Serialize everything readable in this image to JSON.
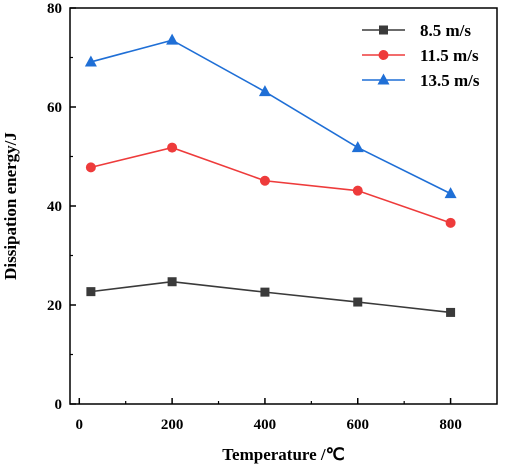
{
  "chart_data": {
    "type": "line",
    "xlabel": "Temperature /℃",
    "ylabel": "Dissipation energy/J",
    "xlim": [
      -20,
      900
    ],
    "ylim": [
      0,
      80
    ],
    "xticks": [
      0,
      200,
      400,
      600,
      800
    ],
    "yticks": [
      0,
      20,
      40,
      60,
      80
    ],
    "x": [
      25,
      200,
      400,
      600,
      800
    ],
    "legend_position": "top-right",
    "grid": false,
    "series": [
      {
        "name": "8.5 m/s",
        "values": [
          22.7,
          24.7,
          22.6,
          20.6,
          18.5
        ],
        "color": "#3a3a3a",
        "marker": "square"
      },
      {
        "name": "11.5 m/s",
        "values": [
          47.8,
          51.8,
          45.1,
          43.1,
          36.6
        ],
        "color": "#ee3b3b",
        "marker": "circle"
      },
      {
        "name": "13.5 m/s",
        "values": [
          69.1,
          73.5,
          63.1,
          51.8,
          42.5
        ],
        "color": "#1f6fd6",
        "marker": "triangle"
      }
    ]
  }
}
